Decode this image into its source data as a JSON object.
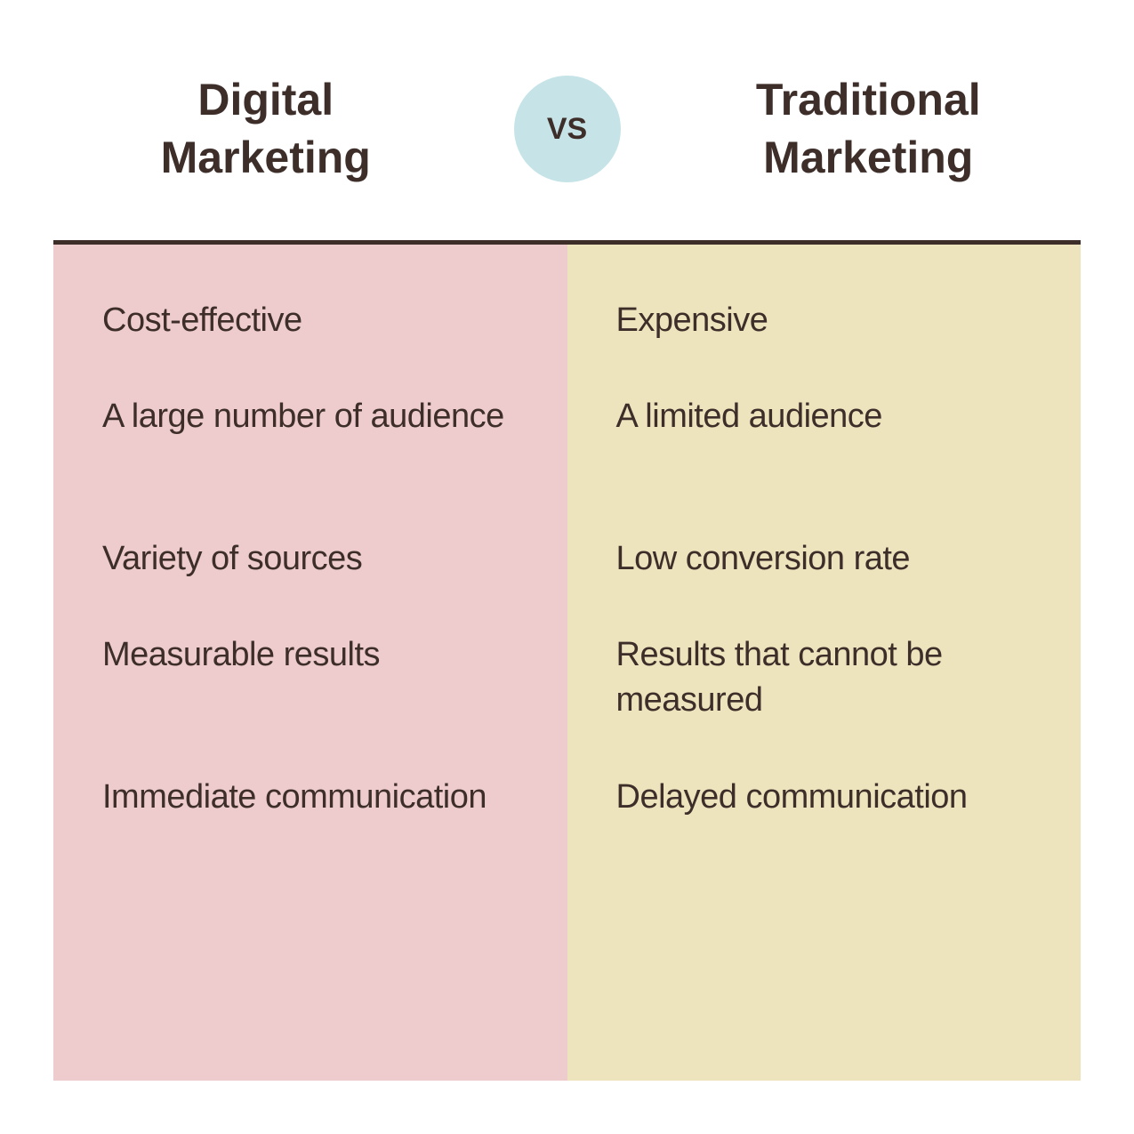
{
  "type": "infographic",
  "layout": "two-column-comparison",
  "background_color": "#ffffff",
  "title_color": "#3d2e2a",
  "title_fontsize": 50,
  "title_fontweight": 700,
  "body_fontsize": 38,
  "body_color": "#3d2e2a",
  "divider_color": "#3d2e2a",
  "divider_height": 5,
  "vs_badge": {
    "label": "VS",
    "background_color": "#c6e4e8",
    "text_color": "#3d2e2a",
    "diameter": 120,
    "fontsize": 34
  },
  "columns": {
    "left": {
      "title_line1": "Digital",
      "title_line2": "Marketing",
      "background_color": "#eeccce",
      "items": [
        "Cost-effective",
        "A large number of audience",
        "Variety of sources",
        "Measurable results",
        "Immediate communication"
      ]
    },
    "right": {
      "title_line1": "Traditional",
      "title_line2": "Marketing",
      "background_color": "#ede3bc",
      "items": [
        "Expensive",
        "A limited audience",
        "Low conversion rate",
        "Results that cannot be measured",
        "Delayed communication"
      ]
    }
  }
}
